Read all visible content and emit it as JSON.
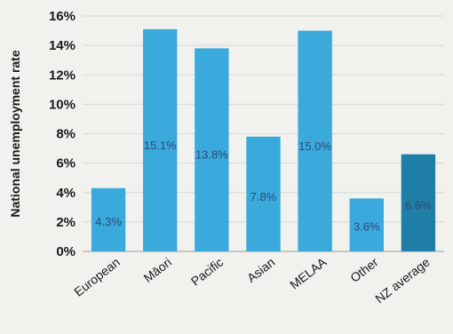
{
  "chart_data": {
    "type": "bar",
    "title": "",
    "xlabel": "",
    "ylabel": "National unemployment rate",
    "categories": [
      "European",
      "Māori",
      "Pacific",
      "Asian",
      "MELAA",
      "Other",
      "NZ average"
    ],
    "values": [
      4.3,
      15.1,
      13.8,
      7.8,
      15.0,
      3.6,
      6.6
    ],
    "data_labels": [
      "4.3%",
      "15.1%",
      "13.8%",
      "7.8%",
      "15.0%",
      "3.6%",
      "6.6%"
    ],
    "ylim": [
      0,
      16
    ],
    "yticks": [
      0,
      2,
      4,
      6,
      8,
      10,
      12,
      14,
      16
    ],
    "ytick_labels": [
      "0%",
      "2%",
      "4%",
      "6%",
      "8%",
      "10%",
      "12%",
      "14%",
      "16%"
    ],
    "grid": true,
    "legend": "none",
    "colors": {
      "bar": "#3aa9dc",
      "highlight_bar": "#1f7fa6",
      "highlight_category": "NZ average",
      "grid": "#d6d9d4",
      "axis_text": "#1a1a1a",
      "data_label": "#2d4a7a"
    }
  }
}
